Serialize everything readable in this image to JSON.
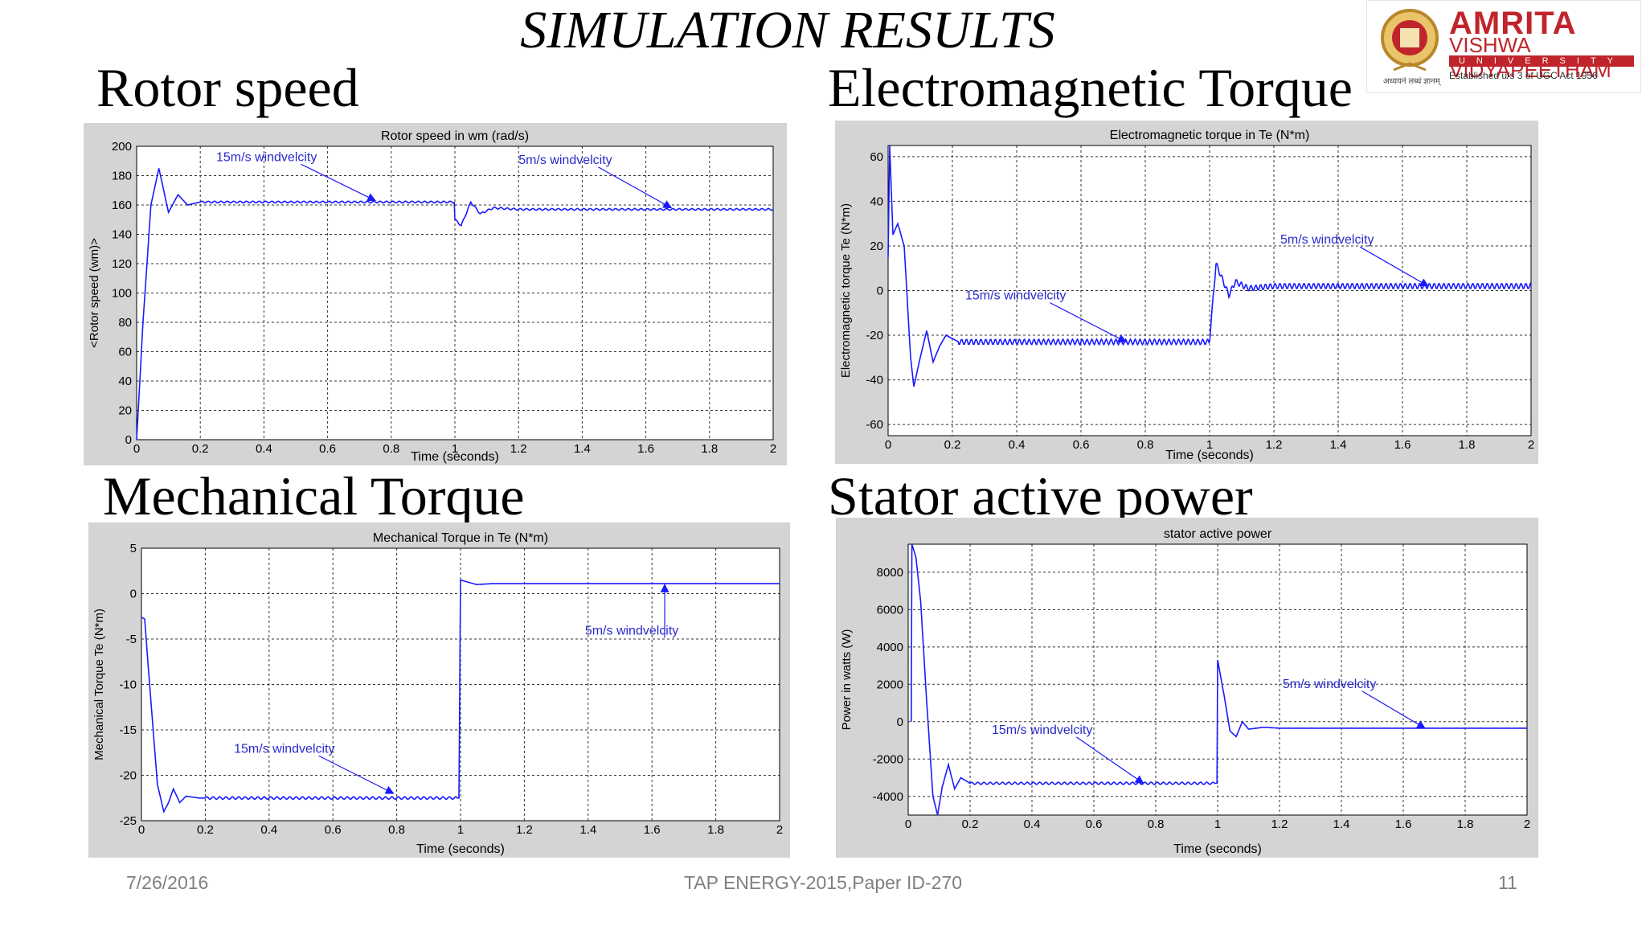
{
  "slide": {
    "title": "SIMULATION RESULTS",
    "sections": {
      "rotor": "Rotor speed",
      "em_torque": "Electromagnetic Torque",
      "mech_torque": "Mechanical Torque",
      "stator_power": "Stator active power"
    },
    "footer": {
      "date": "7/26/2016",
      "center": "TAP ENERGY-2015,Paper ID-270",
      "page": "11"
    }
  },
  "logo": {
    "name": "AMRITA",
    "subtitle": "VISHWA VIDYAPEETHAM",
    "band": "UNIVERSITY",
    "established": "Established u/s 3 of UGC Act 1956",
    "motto": "अध्ययनं लब्धं ज्ञानम्",
    "colors": {
      "brand": "#c0252b",
      "seal": "#b8872a"
    }
  },
  "colors": {
    "panel_bg": "#d4d4d4",
    "plot_bg": "#ffffff",
    "line": "#1a1aff",
    "grid": "#333333"
  },
  "chart_data": [
    {
      "id": "rotor",
      "type": "line",
      "title": "Rotor speed in wm (rad/s)",
      "xlabel": "Time (seconds)",
      "ylabel": "<Rotor speed (wm)>",
      "xlim": [
        0,
        2
      ],
      "ylim": [
        0,
        200
      ],
      "xticks": [
        0,
        0.2,
        0.4,
        0.6,
        0.8,
        1,
        1.2,
        1.4,
        1.6,
        1.8,
        2
      ],
      "yticks": [
        0,
        20,
        40,
        60,
        80,
        100,
        120,
        140,
        160,
        180,
        200
      ],
      "grid": true,
      "series": [
        {
          "values": [
            [
              0,
              0
            ],
            [
              0.02,
              80
            ],
            [
              0.045,
              160
            ],
            [
              0.07,
              185
            ],
            [
              0.1,
              155
            ],
            [
              0.13,
              167
            ],
            [
              0.16,
              160
            ],
            [
              0.2,
              162
            ],
            [
              0.6,
              162
            ],
            [
              0.998,
              162
            ],
            [
              1.0,
              150
            ],
            [
              1.02,
              146
            ],
            [
              1.05,
              162
            ],
            [
              1.08,
              154
            ],
            [
              1.12,
              158
            ],
            [
              1.2,
              157
            ],
            [
              2,
              157
            ]
          ],
          "ripple": {
            "from": 0.2,
            "to": 2.0,
            "amp": 0.6,
            "period": 0.02
          }
        }
      ],
      "annotations": [
        {
          "text": "15m/s windvelcity",
          "x": 0.25,
          "y": 190,
          "ax": 0.75,
          "ay": 163
        },
        {
          "text": "5m/s windvelcity",
          "x": 1.2,
          "y": 188,
          "ax": 1.68,
          "ay": 158
        }
      ]
    },
    {
      "id": "em_torque",
      "type": "line",
      "title": "Electromagnetic torque in Te (N*m)",
      "xlabel": "Time (seconds)",
      "ylabel": "Electromagnetic torque Te (N*m)",
      "xlim": [
        0,
        2
      ],
      "ylim": [
        -65,
        65
      ],
      "xticks": [
        0,
        0.2,
        0.4,
        0.6,
        0.8,
        1,
        1.2,
        1.4,
        1.6,
        1.8,
        2
      ],
      "yticks": [
        -60,
        -40,
        -20,
        0,
        20,
        40,
        60
      ],
      "grid": true,
      "series": [
        {
          "values": [
            [
              0,
              15
            ],
            [
              0.005,
              65
            ],
            [
              0.015,
              25
            ],
            [
              0.03,
              30
            ],
            [
              0.05,
              20
            ],
            [
              0.07,
              -30
            ],
            [
              0.08,
              -43
            ],
            [
              0.1,
              -30
            ],
            [
              0.12,
              -18
            ],
            [
              0.14,
              -32
            ],
            [
              0.16,
              -25
            ],
            [
              0.18,
              -20
            ],
            [
              0.22,
              -23
            ],
            [
              0.998,
              -23
            ],
            [
              1.0,
              -22
            ],
            [
              1.02,
              12
            ],
            [
              1.04,
              5
            ],
            [
              1.06,
              -2
            ],
            [
              1.08,
              4
            ],
            [
              1.12,
              1
            ],
            [
              1.2,
              2
            ],
            [
              2,
              2
            ]
          ],
          "ripple": {
            "from": 0.22,
            "to": 2.0,
            "amp": 1.2,
            "period": 0.015
          }
        }
      ],
      "annotations": [
        {
          "text": "15m/s windvelcity",
          "x": 0.24,
          "y": -4,
          "ax": 0.74,
          "ay": -23
        },
        {
          "text": "5m/s windvelcity",
          "x": 1.22,
          "y": 21,
          "ax": 1.68,
          "ay": 2
        }
      ]
    },
    {
      "id": "mech_torque",
      "type": "line",
      "title": "Mechanical Torque in Te (N*m)",
      "xlabel": "Time (seconds)",
      "ylabel": "Mechanical Torque Te (N*m)",
      "xlim": [
        0,
        2
      ],
      "ylim": [
        -25,
        5
      ],
      "xticks": [
        0,
        0.2,
        0.4,
        0.6,
        0.8,
        1,
        1.2,
        1.4,
        1.6,
        1.8,
        2
      ],
      "yticks": [
        -25,
        -20,
        -15,
        -10,
        -5,
        0,
        5
      ],
      "grid": true,
      "series": [
        {
          "values": [
            [
              0,
              -2.6
            ],
            [
              0.01,
              -2.8
            ],
            [
              0.03,
              -12
            ],
            [
              0.05,
              -21
            ],
            [
              0.07,
              -24
            ],
            [
              0.085,
              -23
            ],
            [
              0.1,
              -21.5
            ],
            [
              0.12,
              -23
            ],
            [
              0.14,
              -22.3
            ],
            [
              0.18,
              -22.5
            ],
            [
              0.6,
              -22.5
            ],
            [
              0.995,
              -22.5
            ],
            [
              1.0,
              1.5
            ],
            [
              1.02,
              1.3
            ],
            [
              1.05,
              1.0
            ],
            [
              1.1,
              1.1
            ],
            [
              2,
              1.1
            ]
          ],
          "ripple": {
            "from": 0.2,
            "to": 0.99,
            "amp": 0.15,
            "period": 0.02
          }
        }
      ],
      "annotations": [
        {
          "text": "15m/s windvelcity",
          "x": 0.29,
          "y": -17.5,
          "ax": 0.79,
          "ay": -22
        },
        {
          "text": "5m/s windvelcity",
          "x": 1.39,
          "y": -4.5,
          "ax": 1.64,
          "ay": 1
        }
      ]
    },
    {
      "id": "stator_power",
      "type": "line",
      "title": "stator active power",
      "xlabel": "Time (seconds)",
      "ylabel": "Power in watts (W)",
      "xlim": [
        0,
        2
      ],
      "ylim": [
        -5000,
        9500
      ],
      "xticks": [
        0,
        0.2,
        0.4,
        0.6,
        0.8,
        1,
        1.2,
        1.4,
        1.6,
        1.8,
        2
      ],
      "yticks": [
        -4000,
        -2000,
        0,
        2000,
        4000,
        6000,
        8000
      ],
      "grid": true,
      "series": [
        {
          "values": [
            [
              0.01,
              0
            ],
            [
              0.012,
              9500
            ],
            [
              0.025,
              8800
            ],
            [
              0.04,
              6500
            ],
            [
              0.06,
              1000
            ],
            [
              0.08,
              -4000
            ],
            [
              0.095,
              -5000
            ],
            [
              0.11,
              -3500
            ],
            [
              0.13,
              -2300
            ],
            [
              0.15,
              -3600
            ],
            [
              0.17,
              -3000
            ],
            [
              0.2,
              -3300
            ],
            [
              0.998,
              -3300
            ],
            [
              1.0,
              3300
            ],
            [
              1.02,
              1500
            ],
            [
              1.04,
              -500
            ],
            [
              1.06,
              -800
            ],
            [
              1.08,
              0
            ],
            [
              1.1,
              -400
            ],
            [
              1.15,
              -300
            ],
            [
              1.2,
              -350
            ],
            [
              2,
              -350
            ]
          ],
          "ripple": {
            "from": 0.2,
            "to": 0.99,
            "amp": 60,
            "period": 0.02
          }
        }
      ],
      "annotations": [
        {
          "text": "15m/s windvelcity",
          "x": 0.27,
          "y": -650,
          "ax": 0.76,
          "ay": -3300
        },
        {
          "text": "5m/s windvelcity",
          "x": 1.21,
          "y": 1800,
          "ax": 1.67,
          "ay": -350
        }
      ]
    }
  ]
}
